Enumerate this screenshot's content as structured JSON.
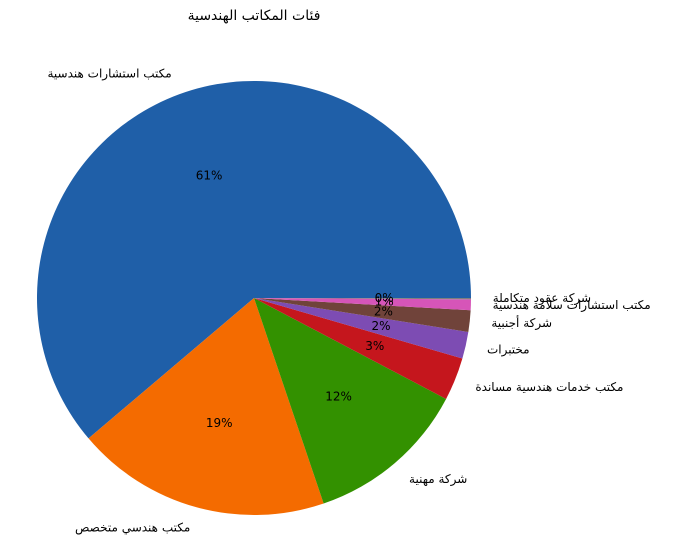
{
  "chart_data": {
    "type": "pie",
    "title": "فئات المكاتب الهندسية",
    "categories": [
      "مكتب استشارات هندسية",
      "مكتب هندسي متخصص",
      "شركة مهنية",
      "مكتب خدمات هندسية مساندة",
      "مختبرات",
      "شركة أجنبية",
      "مكتب استشارات سلامة هندسية",
      "شركة عقود متكاملة"
    ],
    "values": [
      61.2,
      19.0,
      12.1,
      3.2,
      2.0,
      1.6,
      0.8,
      0.1
    ],
    "value_labels": [
      "61%",
      "19%",
      "12%",
      "3%",
      "2%",
      "2%",
      "1%",
      "0%"
    ],
    "colors": [
      "#1f5fa8",
      "#f46b00",
      "#339100",
      "#c5161d",
      "#7d4cb3",
      "#70433a",
      "#d655b8",
      "#7f7f7f"
    ]
  }
}
